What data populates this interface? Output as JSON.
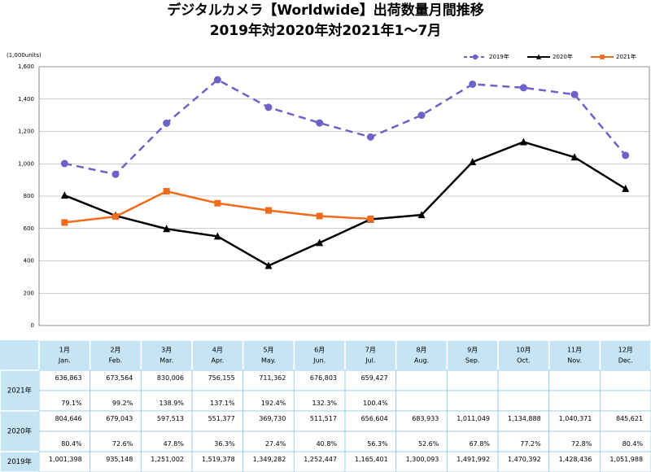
{
  "chart_data": {
    "type": "line",
    "title": "デジタルカメラ【Worldwide】出荷数量月間推移",
    "subtitle": "2019年対2020年対2021年1～7月",
    "y_label": "(1,000units)",
    "categories": [
      "1月",
      "2月",
      "3月",
      "4月",
      "5月",
      "6月",
      "7月",
      "8月",
      "9月",
      "10月",
      "11月",
      "12月"
    ],
    "categories_en": [
      "Jan.",
      "Feb.",
      "Mar.",
      "Apr.",
      "May.",
      "Jun.",
      "Jul.",
      "Aug.",
      "Sep.",
      "Oct.",
      "Nov.",
      "Dec."
    ],
    "ylim": [
      0,
      1600
    ],
    "yticks": [
      0,
      200,
      400,
      600,
      800,
      {
        "value": 1000,
        "label": "1,000"
      },
      {
        "value": 1200,
        "label": "1,200"
      },
      {
        "value": 1400,
        "label": "1,400"
      },
      {
        "value": 1600,
        "label": "1,600"
      }
    ],
    "grid": true,
    "legend": "top-right",
    "series": [
      {
        "name": "2019年",
        "color": "#6b63c8",
        "dashed": true,
        "marker": "circle",
        "values": [
          1001.398,
          935.148,
          1251.002,
          1519.378,
          1349.282,
          1252.447,
          1165.401,
          1300.093,
          1491.992,
          1470.392,
          1428.436,
          1051.988
        ]
      },
      {
        "name": "2020年",
        "color": "#000000",
        "dashed": false,
        "marker": "triangle",
        "values": [
          804.646,
          679.043,
          597.513,
          551.377,
          369.73,
          511.517,
          656.604,
          683.933,
          1011.049,
          1134.888,
          1040.371,
          845.621
        ]
      },
      {
        "name": "2021年",
        "color": "#f26a1b",
        "dashed": false,
        "marker": "square",
        "values": [
          636.863,
          673.564,
          830.006,
          756.155,
          711.362,
          676.803,
          659.427,
          null,
          null,
          null,
          null,
          null
        ]
      }
    ]
  },
  "table": {
    "rows": [
      {
        "label": "2021年",
        "values": [
          "636,863",
          "673,564",
          "830,006",
          "756,155",
          "711,362",
          "676,803",
          "659,427"
        ],
        "ratios": [
          "79.1%",
          "99.2%",
          "138.9%",
          "137.1%",
          "192.4%",
          "132.3%",
          "100.4%"
        ]
      },
      {
        "label": "2020年",
        "values": [
          "804,646",
          "679,043",
          "597,513",
          "551,377",
          "369,730",
          "511,517",
          "656,604",
          "683,933",
          "1,011,049",
          "1,134,888",
          "1,040,371",
          "845,621"
        ],
        "ratios": [
          "80.4%",
          "72.6%",
          "47.8%",
          "36.3%",
          "27.4%",
          "40.8%",
          "56.3%",
          "52.6%",
          "67.8%",
          "77.2%",
          "72.8%",
          "80.4%"
        ]
      },
      {
        "label": "2019年",
        "values": [
          "1,001,398",
          "935,148",
          "1,251,002",
          "1,519,378",
          "1,349,282",
          "1,252,447",
          "1,165,401",
          "1,300,093",
          "1,491,992",
          "1,470,392",
          "1,428,436",
          "1,051,988"
        ]
      }
    ]
  }
}
